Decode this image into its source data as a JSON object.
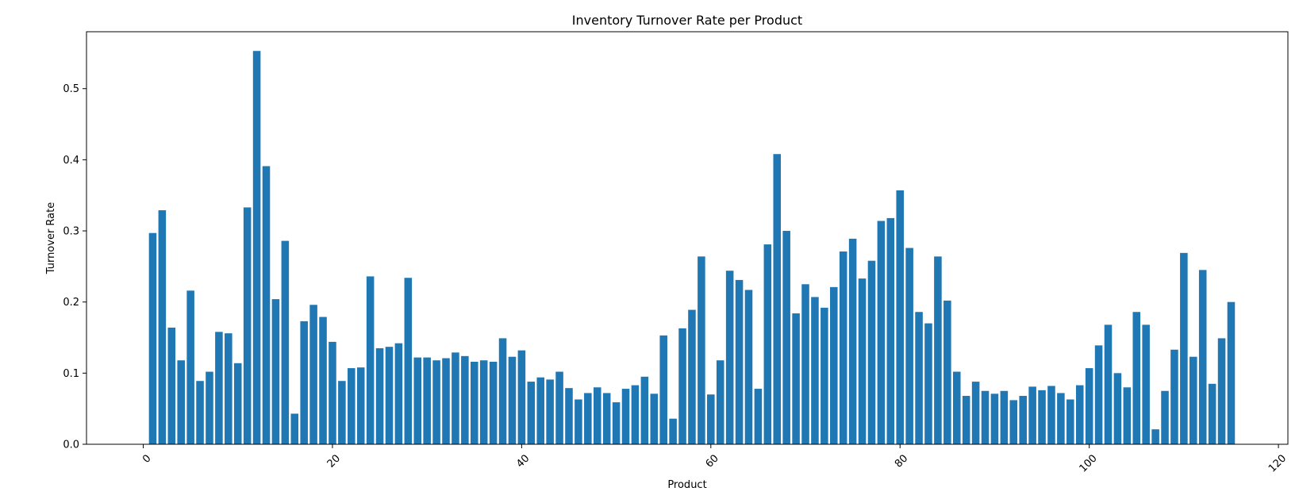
{
  "chart_data": {
    "type": "bar",
    "title": "Inventory Turnover Rate per Product",
    "xlabel": "Product",
    "ylabel": "Turnover Rate",
    "xlim": [
      -6,
      121
    ],
    "ylim": [
      0,
      0.58
    ],
    "x_ticks": [
      0,
      20,
      40,
      60,
      80,
      100,
      120
    ],
    "y_ticks": [
      0.0,
      0.1,
      0.2,
      0.3,
      0.4,
      0.5
    ],
    "x_tick_labels": [
      "0",
      "20",
      "40",
      "60",
      "80",
      "100",
      "120"
    ],
    "y_tick_labels": [
      "0.0",
      "0.1",
      "0.2",
      "0.3",
      "0.4",
      "0.5"
    ],
    "x_tick_rotation": 45,
    "grid": false,
    "bar_color": "#1f77b4",
    "x": [
      1,
      2,
      3,
      4,
      5,
      6,
      7,
      8,
      9,
      10,
      11,
      12,
      13,
      14,
      15,
      16,
      17,
      18,
      19,
      20,
      21,
      22,
      23,
      24,
      25,
      26,
      27,
      28,
      29,
      30,
      31,
      32,
      33,
      34,
      35,
      36,
      37,
      38,
      39,
      40,
      41,
      42,
      43,
      44,
      45,
      46,
      47,
      48,
      49,
      50,
      51,
      52,
      53,
      54,
      55,
      56,
      57,
      58,
      59,
      60,
      61,
      62,
      63,
      64,
      65,
      66,
      67,
      68,
      69,
      70,
      71,
      72,
      73,
      74,
      75,
      76,
      77,
      78,
      79,
      80,
      81,
      82,
      83,
      84,
      85,
      86,
      87,
      88,
      89,
      90,
      91,
      92,
      93,
      94,
      95,
      96,
      97,
      98,
      99,
      100,
      101,
      102,
      103,
      104,
      105,
      106,
      107,
      108,
      109,
      110,
      111,
      112,
      113,
      114,
      115
    ],
    "values": [
      0.297,
      0.329,
      0.164,
      0.118,
      0.216,
      0.089,
      0.102,
      0.158,
      0.156,
      0.114,
      0.333,
      0.553,
      0.391,
      0.204,
      0.286,
      0.043,
      0.173,
      0.196,
      0.179,
      0.144,
      0.089,
      0.107,
      0.108,
      0.236,
      0.135,
      0.137,
      0.142,
      0.234,
      0.122,
      0.122,
      0.118,
      0.121,
      0.129,
      0.124,
      0.116,
      0.118,
      0.116,
      0.149,
      0.123,
      0.132,
      0.088,
      0.094,
      0.091,
      0.102,
      0.079,
      0.063,
      0.072,
      0.08,
      0.072,
      0.059,
      0.078,
      0.083,
      0.095,
      0.071,
      0.153,
      0.036,
      0.163,
      0.189,
      0.264,
      0.07,
      0.118,
      0.244,
      0.231,
      0.217,
      0.078,
      0.281,
      0.408,
      0.3,
      0.184,
      0.225,
      0.207,
      0.192,
      0.221,
      0.271,
      0.289,
      0.233,
      0.258,
      0.314,
      0.318,
      0.357,
      0.276,
      0.186,
      0.17,
      0.264,
      0.202,
      0.102,
      0.068,
      0.088,
      0.075,
      0.071,
      0.075,
      0.062,
      0.068,
      0.081,
      0.076,
      0.082,
      0.072,
      0.063,
      0.083,
      0.107,
      0.139,
      0.168,
      0.1,
      0.08,
      0.186,
      0.168,
      0.021,
      0.075,
      0.133,
      0.269,
      0.123,
      0.245,
      0.085,
      0.149,
      0.2
    ]
  }
}
